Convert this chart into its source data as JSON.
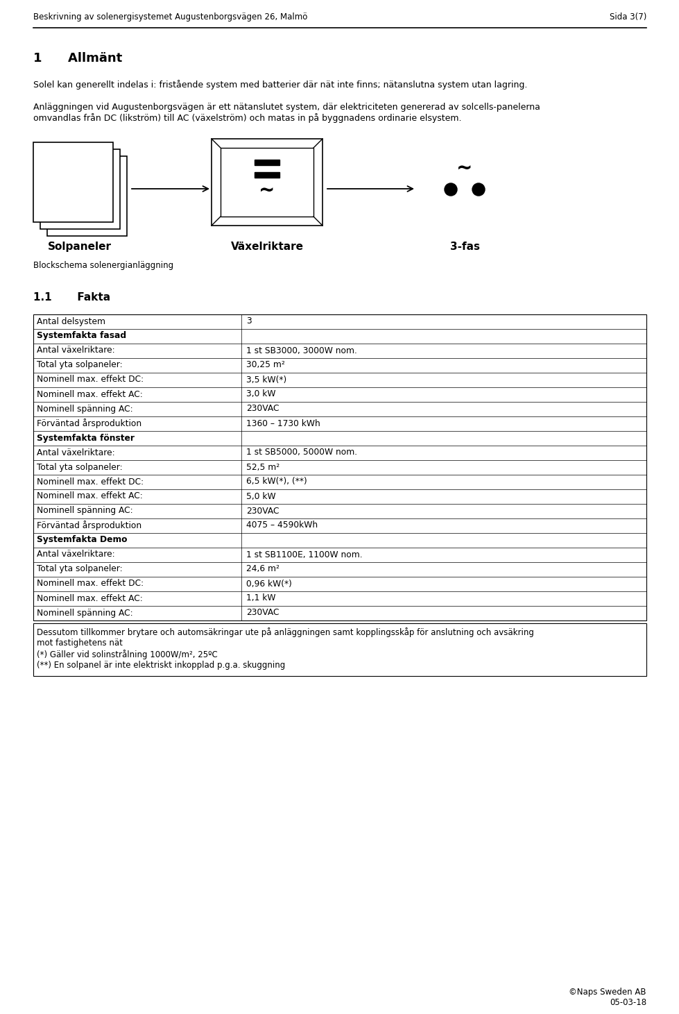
{
  "header_left": "Beskrivning av solenergisystemet Augustenborgsvägen 26, Malmö",
  "header_right": "Sida 3(7)",
  "footer_right": "©Naps Sweden AB\n05-03-18",
  "section1_title": "1      Allmänt",
  "para1": "Solel kan generellt indelas i: fristående system med batterier där nät inte finns; nätanslutna system utan lagring.",
  "para2": "Anläggningen vid Augustenborgsvägen är ett nätanslutet system, där elektriciteten genererad av solcells-panelerna\nomvandlas från DC (likström) till AC (växelström) och matas in på byggnadens ordinarie elsystem.",
  "label_solpaneler": "Solpaneler",
  "label_vaxelriktare": "Växelriktare",
  "label_3fas": "3-fas",
  "label_blockschema": "Blockschema solenergianläggning",
  "section11_title": "1.1       Fakta",
  "table_rows": [
    {
      "label": "Antal delsystem",
      "value": "3",
      "bold_label": false
    },
    {
      "label": "Systemfakta fasad",
      "value": "",
      "bold_label": true
    },
    {
      "label": "Antal växelriktare:",
      "value": "1 st SB3000, 3000W nom.",
      "bold_label": false
    },
    {
      "label": "Total yta solpaneler:",
      "value": "30,25 m²",
      "bold_label": false
    },
    {
      "label": "Nominell max. effekt DC:",
      "value": "3,5 kW(*)",
      "bold_label": false
    },
    {
      "label": "Nominell max. effekt AC:",
      "value": "3,0 kW",
      "bold_label": false
    },
    {
      "label": "Nominell spänning AC:",
      "value": "230VAC",
      "bold_label": false
    },
    {
      "label": "Förväntad årsproduktion",
      "value": "1360 – 1730 kWh",
      "bold_label": false
    },
    {
      "label": "Systemfakta fönster",
      "value": "",
      "bold_label": true
    },
    {
      "label": "Antal växelriktare:",
      "value": "1 st SB5000, 5000W nom.",
      "bold_label": false
    },
    {
      "label": "Total yta solpaneler:",
      "value": "52,5 m²",
      "bold_label": false
    },
    {
      "label": "Nominell max. effekt DC:",
      "value": "6,5 kW(*), (**)",
      "bold_label": false
    },
    {
      "label": "Nominell max. effekt AC:",
      "value": "5,0 kW",
      "bold_label": false
    },
    {
      "label": "Nominell spänning AC:",
      "value": "230VAC",
      "bold_label": false
    },
    {
      "label": "Förväntad årsproduktion",
      "value": "4075 – 4590kWh",
      "bold_label": false
    },
    {
      "label": "Systemfakta Demo",
      "value": "",
      "bold_label": true
    },
    {
      "label": "Antal växelriktare:",
      "value": "1 st SB1100E, 1100W nom.",
      "bold_label": false
    },
    {
      "label": "Total yta solpaneler:",
      "value": "24,6 m²",
      "bold_label": false
    },
    {
      "label": "Nominell max. effekt DC:",
      "value": "0,96 kW(*)",
      "bold_label": false
    },
    {
      "label": "Nominell max. effekt AC:",
      "value": "1,1 kW",
      "bold_label": false
    },
    {
      "label": "Nominell spänning AC:",
      "value": "230VAC",
      "bold_label": false
    }
  ],
  "footnote_lines": [
    "Dessutom tillkommer brytare och automsäkringar ute på anläggningen samt kopplingsskåp för anslutning och avsäkring",
    "mot fastighetens nät",
    "(*) Gäller vid solinstrålning 1000W/m², 25ºC",
    "(**) En solpanel är inte elektriskt inkopplad p.g.a. skuggning"
  ],
  "bg_color": "#ffffff"
}
